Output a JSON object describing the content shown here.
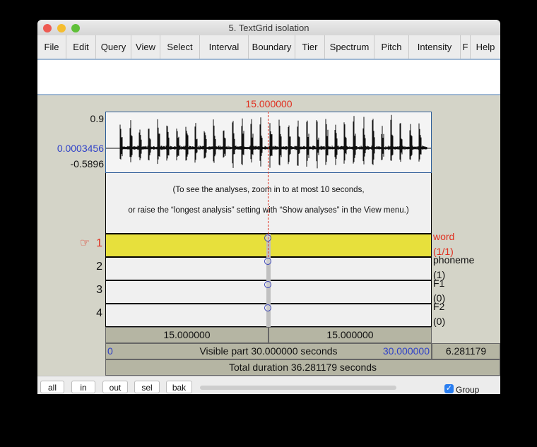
{
  "window": {
    "title": "5. TextGrid isolation"
  },
  "menu": [
    "File",
    "Edit",
    "Query",
    "View",
    "Select",
    "Interval",
    "Boundary",
    "Tier",
    "Spectrum",
    "Pitch",
    "Intensity",
    "F",
    "Help"
  ],
  "cursor_time": "15.000000",
  "waveform": {
    "max": "0.9",
    "value_at_cursor": "0.0003456",
    "min": "-0.5896"
  },
  "analysis_message": {
    "line1": "(To see the analyses, zoom in to at most 10 seconds,",
    "line2": "or raise the “longest analysis” setting with “Show analyses” in the View menu.)"
  },
  "tiers": [
    {
      "number": "1",
      "pointer": "☞",
      "name": "word",
      "count": "(1/1)",
      "selected": true
    },
    {
      "number": "2",
      "name": "phoneme",
      "count": "(1)"
    },
    {
      "number": "3",
      "name": "F1",
      "count": "(0)"
    },
    {
      "number": "4",
      "name": "F2",
      "count": "(0)"
    }
  ],
  "interval_times": {
    "left": "15.000000",
    "right": "15.000000"
  },
  "visible": {
    "start": "0",
    "label": "Visible part 30.000000 seconds",
    "end": "30.000000",
    "remaining": "6.281179"
  },
  "total": {
    "label": "Total duration 36.281179 seconds"
  },
  "buttons": {
    "all": "all",
    "in": "in",
    "out": "out",
    "sel": "sel",
    "bak": "bak"
  },
  "group": {
    "label": "Group",
    "checked": true
  },
  "colors": {
    "selected_tier": "#e7e03c",
    "cursor": "#e03020",
    "blue_value": "#3042c8"
  }
}
